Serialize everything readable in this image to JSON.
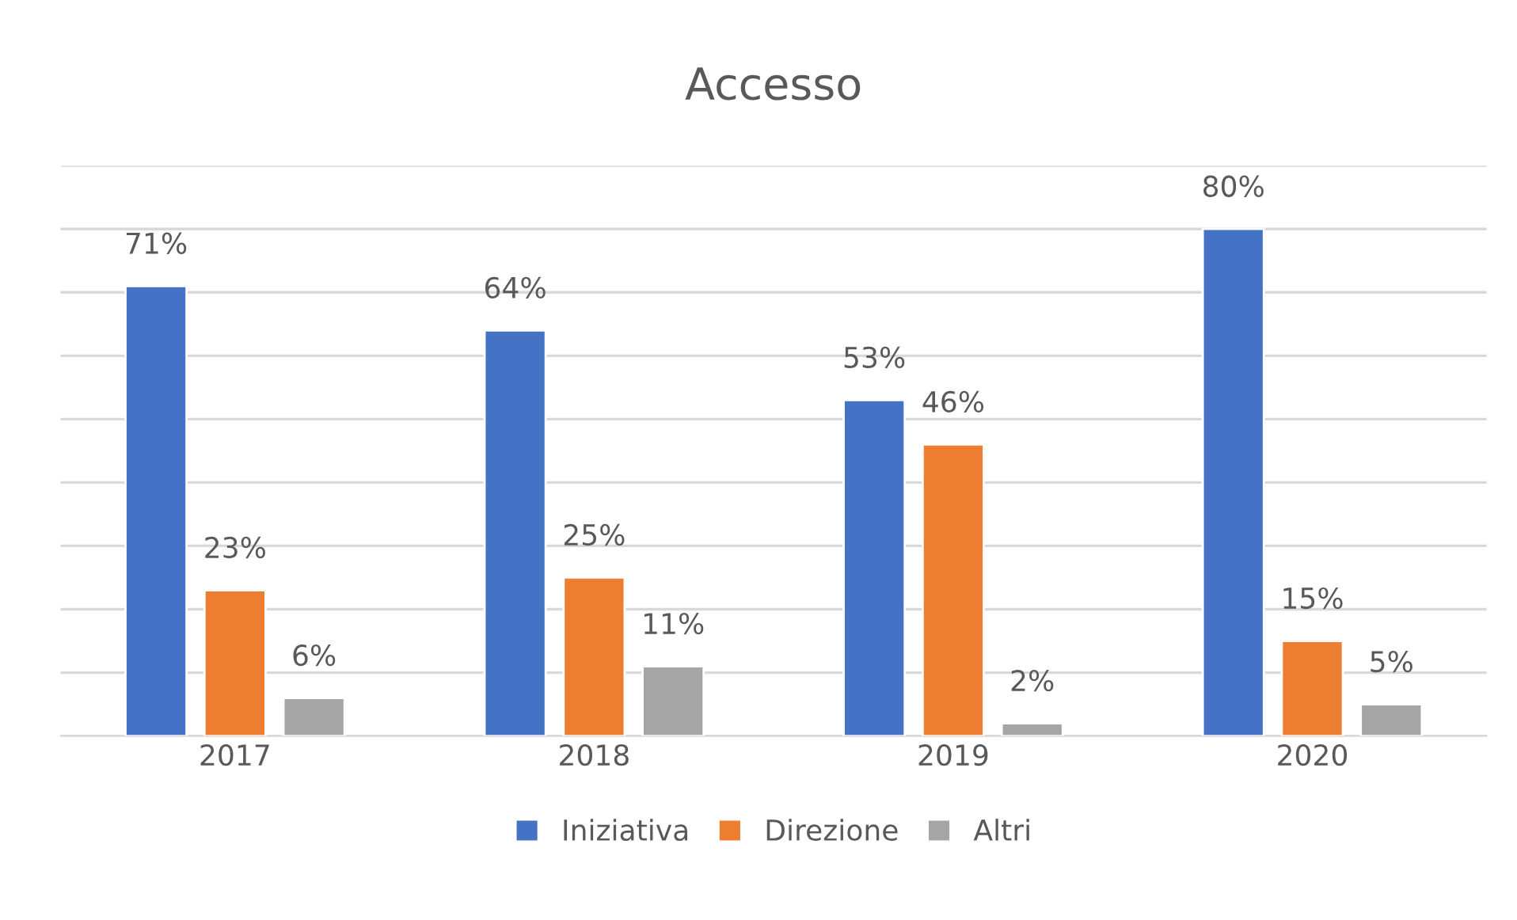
{
  "chart_data": {
    "type": "bar",
    "title": "Accesso",
    "categories": [
      "2017",
      "2018",
      "2019",
      "2020"
    ],
    "series": [
      {
        "name": "Iniziativa",
        "color": "#4472c4",
        "values": [
          71,
          64,
          53,
          80
        ],
        "value_labels": [
          "71%",
          "64%",
          "53%",
          "80%"
        ]
      },
      {
        "name": "Direzione",
        "color": "#ed7d31",
        "values": [
          23,
          25,
          46,
          15
        ],
        "value_labels": [
          "23%",
          "25%",
          "46%",
          "15%"
        ]
      },
      {
        "name": "Altri",
        "color": "#a5a5a5",
        "values": [
          6,
          11,
          2,
          5
        ],
        "value_labels": [
          "6%",
          "11%",
          "2%",
          "5%"
        ]
      }
    ],
    "ylim": [
      0,
      90
    ],
    "yticks": [
      {
        "value": 0,
        "label": null
      },
      {
        "value": 10,
        "label": null
      },
      {
        "value": 20,
        "label": null
      },
      {
        "value": 30,
        "label": null
      },
      {
        "value": 40,
        "label": null
      },
      {
        "value": 50,
        "label": null
      },
      {
        "value": 60,
        "label": null
      },
      {
        "value": 70,
        "label": null
      },
      {
        "value": 80,
        "label": null
      },
      {
        "value": 90,
        "label": null
      }
    ],
    "grid": "y",
    "legend": "bottom",
    "tick_labels": "x"
  }
}
